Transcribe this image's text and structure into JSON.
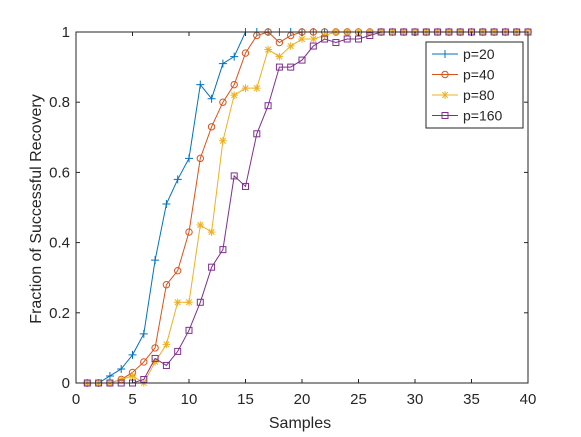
{
  "chart_data": {
    "type": "line",
    "xlabel": "Samples",
    "ylabel": "Fraction of Successful Recovery",
    "xlim": [
      0,
      40
    ],
    "ylim": [
      0,
      1
    ],
    "xticks": [
      0,
      5,
      10,
      15,
      20,
      25,
      30,
      35,
      40
    ],
    "yticks": [
      0,
      0.2,
      0.4,
      0.6,
      0.8,
      1
    ],
    "xtick_labels": [
      "0",
      "5",
      "10",
      "15",
      "20",
      "25",
      "30",
      "35",
      "40"
    ],
    "ytick_labels": [
      "0",
      "0.2",
      "0.4",
      "0.6",
      "0.8",
      "1"
    ],
    "grid": false,
    "legend_position": "top-right",
    "series": [
      {
        "name": "p=20",
        "color": "#0072BD",
        "marker": "plus",
        "x": [
          1,
          2,
          3,
          4,
          5,
          6,
          7,
          8,
          9,
          10,
          11,
          12,
          13,
          14,
          15,
          16,
          17,
          18,
          19,
          20,
          21,
          22,
          23,
          24,
          25,
          26,
          27,
          28,
          29,
          30,
          31,
          32,
          33,
          34,
          35,
          36,
          37,
          38,
          39,
          40
        ],
        "y": [
          0,
          0,
          0.02,
          0.04,
          0.08,
          0.14,
          0.35,
          0.51,
          0.58,
          0.64,
          0.85,
          0.81,
          0.91,
          0.93,
          1,
          1,
          1,
          1,
          1,
          1,
          1,
          1,
          1,
          1,
          1,
          1,
          1,
          1,
          1,
          1,
          1,
          1,
          1,
          1,
          1,
          1,
          1,
          1,
          1,
          1
        ]
      },
      {
        "name": "p=40",
        "color": "#D95319",
        "marker": "circle",
        "x": [
          1,
          2,
          3,
          4,
          5,
          6,
          7,
          8,
          9,
          10,
          11,
          12,
          13,
          14,
          15,
          16,
          17,
          18,
          19,
          20,
          21,
          22,
          23,
          24,
          25,
          26,
          27,
          28,
          29,
          30,
          31,
          32,
          33,
          34,
          35,
          36,
          37,
          38,
          39,
          40
        ],
        "y": [
          0,
          0,
          0,
          0.01,
          0.03,
          0.06,
          0.1,
          0.28,
          0.32,
          0.43,
          0.64,
          0.73,
          0.8,
          0.85,
          0.94,
          0.99,
          1,
          0.97,
          0.99,
          1,
          1,
          1,
          1,
          1,
          1,
          1,
          1,
          1,
          1,
          1,
          1,
          1,
          1,
          1,
          1,
          1,
          1,
          1,
          1,
          1
        ]
      },
      {
        "name": "p=80",
        "color": "#EDB120",
        "marker": "star",
        "x": [
          1,
          2,
          3,
          4,
          5,
          6,
          7,
          8,
          9,
          10,
          11,
          12,
          13,
          14,
          15,
          16,
          17,
          18,
          19,
          20,
          21,
          22,
          23,
          24,
          25,
          26,
          27,
          28,
          29,
          30,
          31,
          32,
          33,
          34,
          35,
          36,
          37,
          38,
          39,
          40
        ],
        "y": [
          0,
          0,
          0,
          0.01,
          0.02,
          0,
          0.06,
          0.11,
          0.23,
          0.23,
          0.45,
          0.43,
          0.69,
          0.82,
          0.84,
          0.84,
          0.95,
          0.93,
          0.96,
          0.98,
          0.98,
          0.99,
          1,
          1,
          1,
          1,
          1,
          1,
          1,
          1,
          1,
          1,
          1,
          1,
          1,
          1,
          1,
          1,
          1,
          1
        ]
      },
      {
        "name": "p=160",
        "color": "#7E2F8E",
        "marker": "square",
        "x": [
          1,
          2,
          3,
          4,
          5,
          6,
          7,
          8,
          9,
          10,
          11,
          12,
          13,
          14,
          15,
          16,
          17,
          18,
          19,
          20,
          21,
          22,
          23,
          24,
          25,
          26,
          27,
          28,
          29,
          30,
          31,
          32,
          33,
          34,
          35,
          36,
          37,
          38,
          39,
          40
        ],
        "y": [
          0,
          0,
          0,
          0,
          0,
          0.01,
          0.07,
          0.05,
          0.09,
          0.15,
          0.23,
          0.33,
          0.38,
          0.59,
          0.56,
          0.71,
          0.79,
          0.9,
          0.9,
          0.92,
          0.96,
          0.98,
          0.97,
          0.98,
          0.98,
          0.99,
          1,
          1,
          1,
          1,
          1,
          1,
          1,
          1,
          1,
          1,
          1,
          1,
          1,
          1
        ]
      }
    ]
  }
}
